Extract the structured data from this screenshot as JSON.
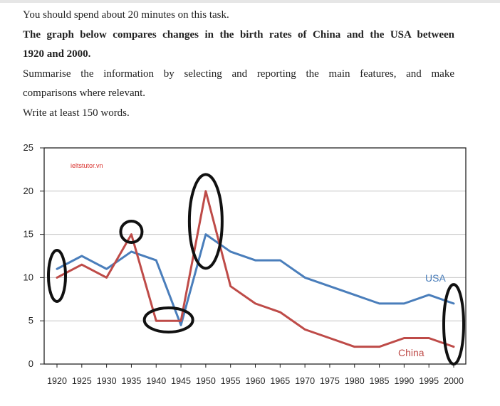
{
  "task": {
    "instruction": "You should spend about 20 minutes on this task.",
    "prompt_line1": "The graph below compares changes in the birth rates of China and the USA between",
    "prompt_line2": "1920 and 2000.",
    "summary_line1": "Summarise the information by selecting and reporting the main features, and make",
    "summary_line2": "comparisons where relevant.",
    "word_count": "Write at least 150 words."
  },
  "chart_data": {
    "type": "line",
    "title": "",
    "xlabel": "",
    "ylabel": "",
    "watermark": "ieltstutor.vn",
    "x": [
      1920,
      1925,
      1930,
      1935,
      1940,
      1945,
      1950,
      1955,
      1960,
      1965,
      1970,
      1975,
      1980,
      1985,
      1990,
      1995,
      2000
    ],
    "xlim": [
      1920,
      2000
    ],
    "ylim": [
      0,
      25
    ],
    "yticks": [
      0,
      5,
      10,
      15,
      20,
      25
    ],
    "grid": true,
    "series": [
      {
        "name": "USA",
        "color": "#4a7ebb",
        "values": [
          11,
          12.5,
          11,
          13,
          12,
          4.5,
          15,
          13,
          12,
          12,
          10,
          9,
          8,
          7,
          7,
          8,
          7
        ]
      },
      {
        "name": "China",
        "color": "#be4b48",
        "values": [
          10,
          11.5,
          10,
          15,
          5,
          5,
          20,
          9,
          7,
          6,
          4,
          3,
          2,
          2,
          3,
          3,
          2
        ]
      }
    ],
    "highlights": [
      {
        "x": 1920,
        "y": 10.2
      },
      {
        "x": 1935,
        "y": 15.3
      },
      {
        "x": 1942.5,
        "y": 5.1
      },
      {
        "x": 1950,
        "y": 16.5
      },
      {
        "x": 2000,
        "y": 4.6
      }
    ]
  }
}
